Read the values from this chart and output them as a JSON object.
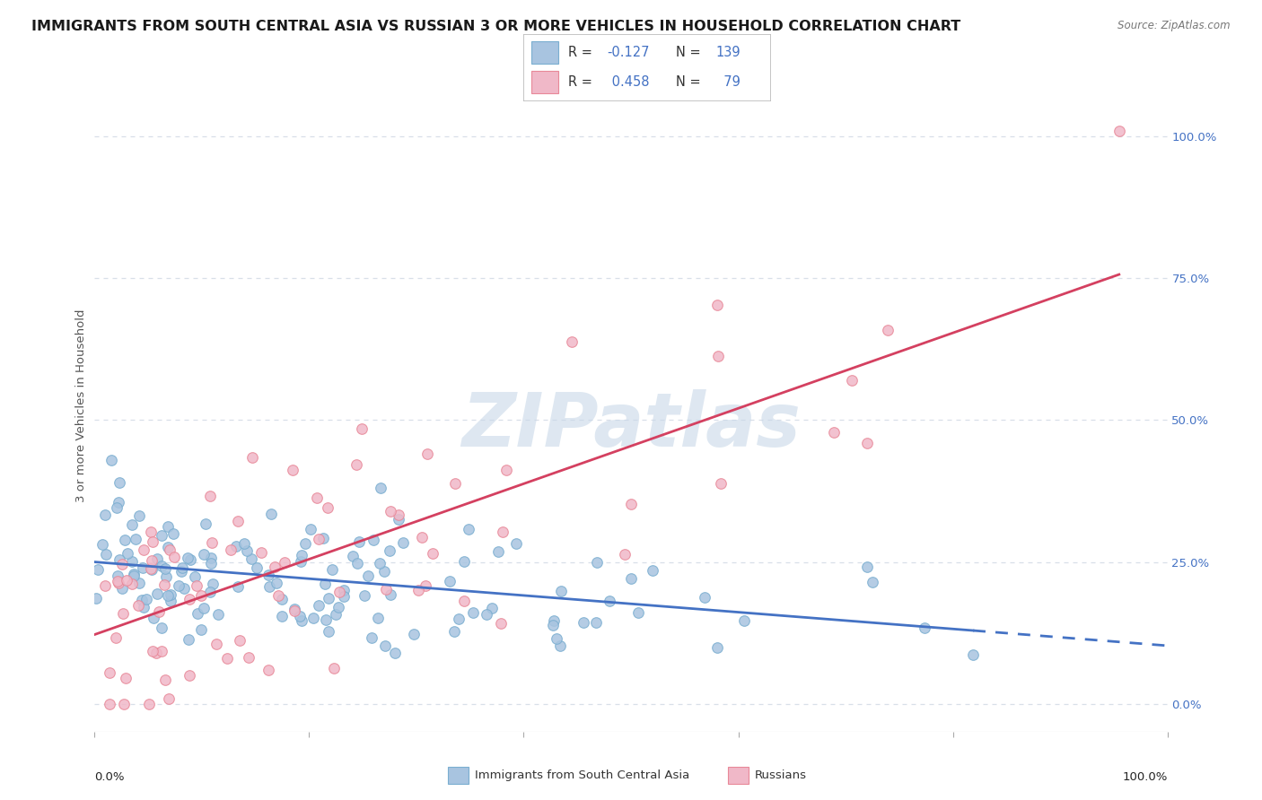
{
  "title": "IMMIGRANTS FROM SOUTH CENTRAL ASIA VS RUSSIAN 3 OR MORE VEHICLES IN HOUSEHOLD CORRELATION CHART",
  "source": "Source: ZipAtlas.com",
  "ylabel": "3 or more Vehicles in Household",
  "xlim": [
    0.0,
    1.0
  ],
  "ylim": [
    -0.05,
    1.1
  ],
  "ytick_labels": [
    "0.0%",
    "25.0%",
    "50.0%",
    "75.0%",
    "100.0%"
  ],
  "ytick_values": [
    0.0,
    0.25,
    0.5,
    0.75,
    1.0
  ],
  "blue_face": "#a8c4e0",
  "blue_edge": "#7aaed0",
  "pink_face": "#f0b8c8",
  "pink_edge": "#e88898",
  "line_blue": "#4472c4",
  "line_pink": "#d44060",
  "watermark": "ZIPatlas",
  "watermark_color": "#c8d8e8",
  "background_color": "#ffffff",
  "grid_color": "#d8dfe8",
  "blue_R": -0.127,
  "blue_N": 139,
  "pink_R": 0.458,
  "pink_N": 79,
  "blue_intercept": 0.225,
  "pink_intercept": 0.13,
  "pink_slope": 0.55
}
